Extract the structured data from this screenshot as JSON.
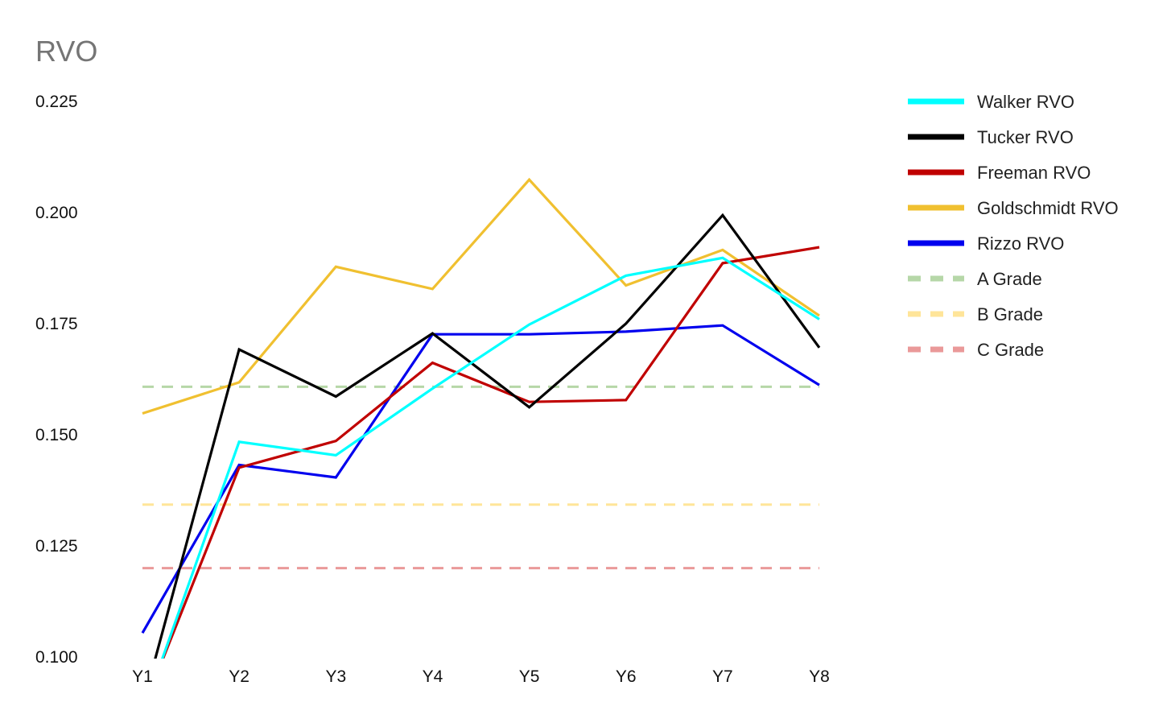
{
  "chart_data": {
    "type": "line",
    "title": "RVO",
    "xlabel": "",
    "ylabel": "",
    "categories": [
      "Y1",
      "Y2",
      "Y3",
      "Y4",
      "Y5",
      "Y6",
      "Y7",
      "Y8"
    ],
    "ylim": [
      0.1,
      0.225
    ],
    "yticks": [
      "0.100",
      "0.125",
      "0.150",
      "0.175",
      "0.200",
      "0.225"
    ],
    "grid": false,
    "legend_position": "right",
    "series": [
      {
        "name": "Walker RVO",
        "color": "#00ffff",
        "style": "solid",
        "values": [
          0.087,
          0.1484,
          0.1454,
          0.1604,
          0.1748,
          0.1858,
          0.1898,
          0.176
        ]
      },
      {
        "name": "Tucker RVO",
        "color": "#000000",
        "style": "solid",
        "values": [
          0.089,
          0.1692,
          0.1586,
          0.1728,
          0.1562,
          0.175,
          0.1994,
          0.1696
        ]
      },
      {
        "name": "Freeman RVO",
        "color": "#c00000",
        "style": "solid",
        "values": [
          0.088,
          0.1426,
          0.1486,
          0.1662,
          0.1574,
          0.1578,
          0.1886,
          0.1922
        ]
      },
      {
        "name": "Goldschmidt RVO",
        "color": "#f0c030",
        "style": "solid",
        "values": [
          0.1548,
          0.1618,
          0.1878,
          0.1828,
          0.2074,
          0.1836,
          0.1916,
          0.1768
        ]
      },
      {
        "name": "Rizzo RVO",
        "color": "#0000ee",
        "style": "solid",
        "values": [
          0.1054,
          0.1432,
          0.1404,
          0.1726,
          0.1726,
          0.1732,
          0.1746,
          0.1612
        ]
      },
      {
        "name": "A Grade",
        "color": "#b6d7a8",
        "style": "dashed",
        "values": [
          0.1608,
          0.1608,
          0.1608,
          0.1608,
          0.1608,
          0.1608,
          0.1608,
          0.1608
        ]
      },
      {
        "name": "B Grade",
        "color": "#ffe599",
        "style": "dashed",
        "values": [
          0.1343,
          0.1343,
          0.1343,
          0.1343,
          0.1343,
          0.1343,
          0.1343,
          0.1343
        ]
      },
      {
        "name": "C Grade",
        "color": "#ea9999",
        "style": "dashed",
        "values": [
          0.12,
          0.12,
          0.12,
          0.12,
          0.12,
          0.12,
          0.12,
          0.12
        ]
      }
    ]
  }
}
